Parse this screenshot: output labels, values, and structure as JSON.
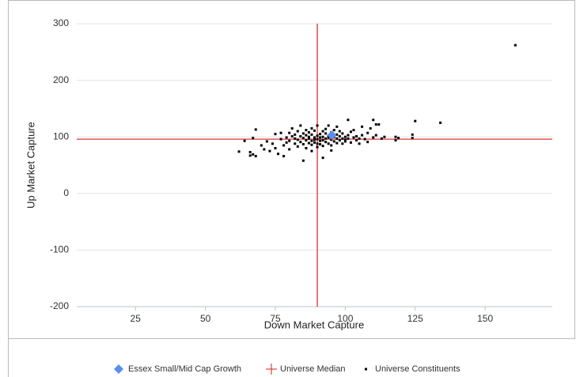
{
  "chart_data": {
    "type": "scatter",
    "x_label": "Down Market Capture",
    "y_label": "Up Market Capture",
    "xlim": [
      4,
      174
    ],
    "xticks": [
      25,
      50,
      75,
      100,
      125,
      150
    ],
    "ylim": [
      -200,
      300
    ],
    "yticks": [
      -200,
      -100,
      0,
      100,
      200,
      300
    ],
    "grid": true,
    "median": {
      "name": "Universe Median",
      "color": "#d61f1f",
      "x": 90,
      "y": 96
    },
    "series": [
      {
        "name": "Essex Small/Mid Cap Growth",
        "color": "#5b8def",
        "marker": "diamond",
        "x": [
          95.2
        ],
        "values": [
          103
        ]
      },
      {
        "name": "Universe Constituents",
        "color": "#000000",
        "marker": "square",
        "x": [
          62,
          64,
          66,
          66,
          67,
          67,
          68,
          68,
          70,
          71,
          72,
          73,
          74,
          75,
          75,
          76,
          77,
          77,
          78,
          78,
          79,
          79,
          80,
          80,
          80,
          81,
          81,
          82,
          82,
          82,
          83,
          83,
          83,
          84,
          84,
          84,
          85,
          85,
          85,
          85,
          86,
          86,
          86,
          86,
          87,
          87,
          87,
          87,
          88,
          88,
          88,
          88,
          88,
          89,
          89,
          89,
          89,
          90,
          90,
          90,
          90,
          90,
          91,
          91,
          91,
          91,
          92,
          92,
          92,
          92,
          92,
          93,
          93,
          93,
          93,
          94,
          94,
          94,
          94,
          95,
          95,
          95,
          95,
          96,
          96,
          96,
          97,
          97,
          97,
          97,
          98,
          98,
          98,
          99,
          99,
          99,
          100,
          100,
          100,
          101,
          101,
          101,
          102,
          102,
          103,
          103,
          104,
          104,
          105,
          105,
          106,
          106,
          107,
          108,
          108,
          109,
          110,
          110,
          111,
          111,
          112,
          113,
          114,
          118,
          118,
          119,
          124,
          124,
          125,
          134,
          160.8
        ],
        "values": [
          74,
          93,
          73,
          67,
          69,
          98,
          66,
          113,
          85,
          78,
          92,
          75,
          88,
          105,
          80,
          70,
          96,
          107,
          85,
          66,
          99,
          90,
          107,
          78,
          93,
          115,
          101,
          88,
          97,
          104,
          95,
          83,
          110,
          101,
          91,
          120,
          98,
          87,
          106,
          58,
          94,
          103,
          112,
          80,
          97,
          89,
          108,
          100,
          93,
          104,
          86,
          115,
          75,
          99,
          90,
          111,
          95,
          102,
          88,
          120,
          96,
          82,
          93,
          105,
          99,
          87,
          110,
          94,
          100,
          63,
          84,
          97,
          106,
          91,
          114,
          99,
          88,
          102,
          120,
          95,
          108,
          85,
          76,
          100,
          92,
          112,
          97,
          104,
          89,
          118,
          94,
          101,
          110,
          97,
          88,
          106,
          100,
          92,
          95,
          103,
          130,
          97,
          90,
          109,
          99,
          112,
          94,
          101,
          97,
          88,
          103,
          118,
          96,
          91,
          107,
          115,
          99,
          130,
          122,
          103,
          122,
          97,
          100,
          94,
          100,
          98,
          104,
          98,
          128,
          125,
          262
        ]
      }
    ]
  }
}
